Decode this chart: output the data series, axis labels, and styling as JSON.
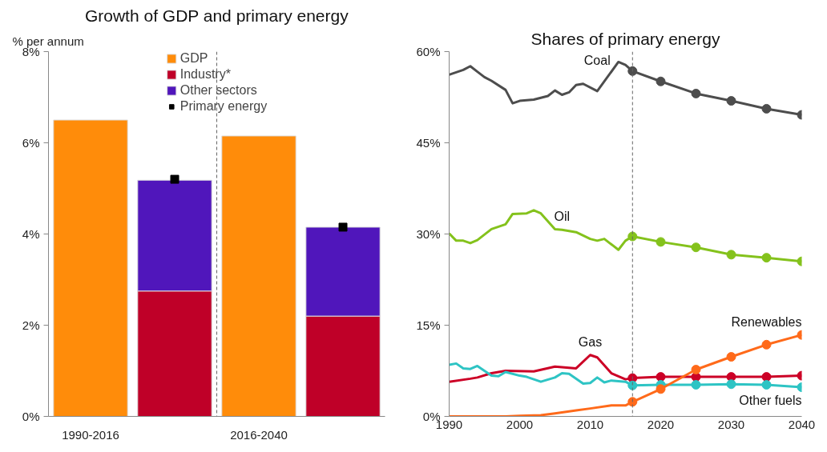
{
  "chart_data": [
    {
      "type": "bar",
      "title": "Growth of GDP and primary energy",
      "ylabel": "% per annum",
      "stacked": true,
      "categories": [
        "1990-2016",
        null,
        "2016-2040",
        null
      ],
      "series": [
        {
          "name": "GDP",
          "color": "#ff8c0a",
          "values": [
            6.5,
            null,
            6.15,
            null
          ]
        },
        {
          "name": "Industry*",
          "color": "#bf0028",
          "values": [
            null,
            2.75,
            null,
            2.2
          ]
        },
        {
          "name": "Other sectors",
          "color": "#5016bb",
          "values": [
            null,
            2.43,
            null,
            1.95
          ]
        },
        {
          "name": "Primary energy",
          "type": "scatter",
          "marker": "square",
          "color": "#000000",
          "values": [
            null,
            5.2,
            null,
            4.15
          ]
        }
      ],
      "ylim": [
        0,
        8
      ],
      "yticks": [
        {
          "value": 0,
          "label": "0%"
        },
        {
          "value": 2,
          "label": "2%"
        },
        {
          "value": 4,
          "label": "4%"
        },
        {
          "value": 6,
          "label": "6%"
        },
        {
          "value": 8,
          "label": "8%"
        }
      ],
      "legend": "top",
      "grid": false
    },
    {
      "type": "line",
      "title": "Shares of primary energy",
      "series": [
        {
          "color": "#4d4d4d",
          "x": [
            1990,
            1992,
            1993,
            1994,
            1995,
            1996,
            1998,
            1999,
            2000,
            2002,
            2004,
            2005,
            2006,
            2007,
            2008,
            2009,
            2011,
            2014,
            2015,
            2016
          ],
          "values": [
            56.2,
            57.0,
            57.6,
            56.7,
            55.8,
            55.2,
            53.7,
            51.5,
            51.9,
            52.1,
            52.7,
            53.6,
            52.9,
            53.3,
            54.5,
            54.7,
            53.5,
            58.3,
            57.8,
            56.8
          ]
        },
        {
          "color": "#4d4d4d",
          "marker": "circle",
          "x": [
            2016,
            2020,
            2025,
            2030,
            2035,
            2040
          ],
          "values": [
            56.8,
            55.1,
            53.1,
            51.9,
            50.6,
            49.6
          ]
        },
        {
          "color": "#84c21c",
          "x": [
            1990,
            1991,
            1992,
            1993,
            1994,
            1996,
            1998,
            1999,
            2001,
            2002,
            2003,
            2005,
            2006,
            2008,
            2010,
            2011,
            2012,
            2014,
            2015,
            2016
          ],
          "values": [
            30.1,
            28.9,
            28.9,
            28.5,
            29.0,
            30.8,
            31.6,
            33.3,
            33.4,
            33.9,
            33.4,
            30.8,
            30.7,
            30.3,
            29.2,
            28.9,
            29.2,
            27.4,
            28.9,
            29.6
          ]
        },
        {
          "color": "#84c21c",
          "marker": "circle",
          "x": [
            2016,
            2020,
            2025,
            2030,
            2035,
            2040
          ],
          "values": [
            29.6,
            28.7,
            27.8,
            26.6,
            26.1,
            25.5
          ]
        },
        {
          "color": "#cc0026",
          "x": [
            1990,
            1993,
            1994,
            1996,
            1998,
            2002,
            2005,
            2008,
            2010,
            2011,
            2013,
            2015,
            2016
          ],
          "values": [
            5.7,
            6.2,
            6.4,
            7.1,
            7.5,
            7.4,
            8.2,
            7.9,
            10.1,
            9.7,
            7.1,
            6.1,
            6.3
          ]
        },
        {
          "color": "#cc0026",
          "marker": "circle",
          "x": [
            2016,
            2020,
            2025,
            2030,
            2035,
            2040
          ],
          "values": [
            6.3,
            6.5,
            6.5,
            6.5,
            6.5,
            6.7
          ]
        },
        {
          "color": "#2ec4c4",
          "x": [
            1990,
            1991,
            1992,
            1993,
            1994,
            1996,
            1997,
            1998,
            2000,
            2001,
            2003,
            2005,
            2006,
            2007,
            2009,
            2010,
            2011,
            2012,
            2013,
            2015,
            2016
          ],
          "values": [
            8.5,
            8.7,
            7.9,
            7.8,
            8.3,
            6.7,
            6.6,
            7.3,
            6.7,
            6.5,
            5.7,
            6.4,
            7.1,
            7.0,
            5.4,
            5.5,
            6.4,
            5.6,
            5.9,
            5.7,
            5.1
          ]
        },
        {
          "color": "#2ec4c4",
          "marker": "circle",
          "x": [
            2016,
            2020,
            2025,
            2030,
            2035,
            2040
          ],
          "values": [
            5.1,
            5.2,
            5.2,
            5.3,
            5.2,
            4.8
          ]
        },
        {
          "color": "#ff6a1a",
          "x": [
            1990,
            1998,
            2000,
            2003,
            2005,
            2008,
            2010,
            2013,
            2015,
            2016
          ],
          "values": [
            0,
            0,
            0.1,
            0.2,
            0.5,
            1.0,
            1.3,
            1.8,
            1.8,
            2.4
          ]
        },
        {
          "color": "#ff6a1a",
          "marker": "circle",
          "x": [
            2016,
            2020,
            2025,
            2030,
            2035,
            2040
          ],
          "values": [
            2.4,
            4.5,
            7.7,
            9.8,
            11.8,
            13.4
          ]
        }
      ],
      "annotations": [
        {
          "text": "Coal",
          "x": 2014,
          "y": 58.3
        },
        {
          "text": "Oil",
          "x": 2006,
          "y": 30.7
        },
        {
          "text": "Gas",
          "x": 2010,
          "y": 10.1
        },
        {
          "text": "Renewables",
          "x": 2040,
          "y": 13.4
        },
        {
          "text": "Other fuels",
          "x": 2040,
          "y": 4.8
        }
      ],
      "xlim": [
        1990,
        2040
      ],
      "xticks": [
        1990,
        2000,
        2010,
        2020,
        2030,
        2040
      ],
      "ylim": [
        0,
        60
      ],
      "yticks": [
        {
          "value": 0,
          "label": "0%"
        },
        {
          "value": 15,
          "label": "15%"
        },
        {
          "value": 30,
          "label": "30%"
        },
        {
          "value": 45,
          "label": "45%"
        },
        {
          "value": 60,
          "label": "60%"
        }
      ],
      "ref_lines": [
        {
          "axis": "x",
          "value": 2016,
          "color": "#666666",
          "line_style": "dashed"
        }
      ],
      "grid": false
    }
  ]
}
